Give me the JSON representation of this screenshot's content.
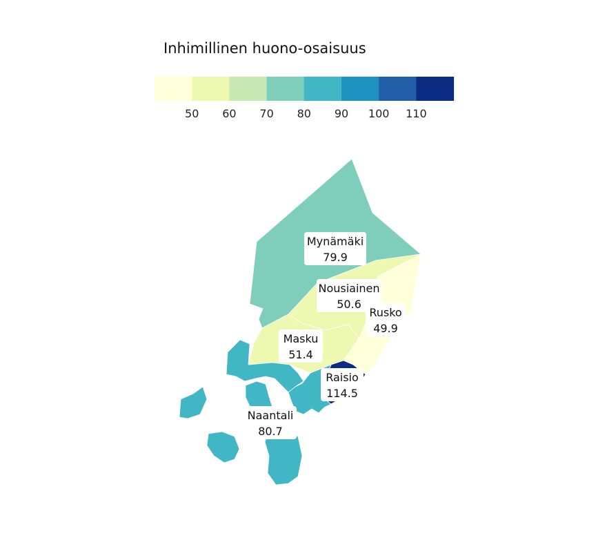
{
  "legend": {
    "title": "Inhimillinen huono-osaisuus",
    "bins": [
      {
        "color": "#ffffd9"
      },
      {
        "color": "#edf8b1"
      },
      {
        "color": "#c7e9b4"
      },
      {
        "color": "#7fcdbb"
      },
      {
        "color": "#41b6c4"
      },
      {
        "color": "#1d91c0"
      },
      {
        "color": "#225ea8"
      },
      {
        "color": "#0c2c84"
      }
    ],
    "ticks": [
      "50",
      "60",
      "70",
      "80",
      "90",
      "100",
      "110"
    ]
  },
  "regions": [
    {
      "id": "mynamaki",
      "name": "Mynämäki",
      "value": "79.9",
      "color": "#7fcdbb"
    },
    {
      "id": "nousiainen",
      "name": "Nousiainen",
      "value": "50.6",
      "color": "#edf8b1"
    },
    {
      "id": "rusko",
      "name": "Rusko",
      "value": "49.9",
      "color": "#ffffd9"
    },
    {
      "id": "masku",
      "name": "Masku",
      "value": "51.4",
      "color": "#edf8b1"
    },
    {
      "id": "raisio",
      "name": "Raisio",
      "value": "114.5",
      "color": "#0c2c84"
    },
    {
      "id": "naantali",
      "name": "Naantali",
      "value": "80.7",
      "color": "#41b6c4"
    }
  ]
}
